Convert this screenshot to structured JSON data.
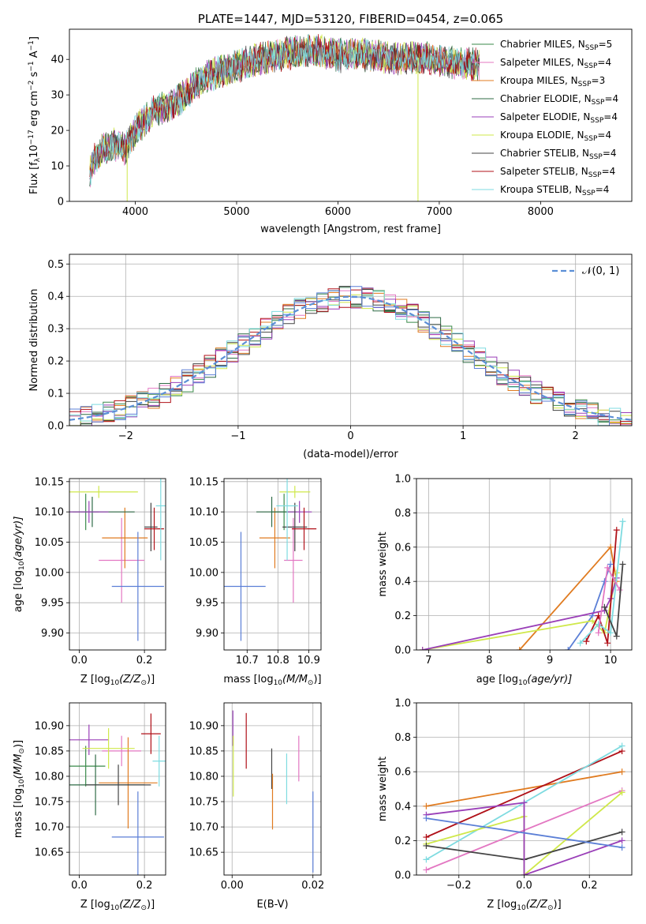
{
  "colors": {
    "chabrier_miles": "#3a8a4a",
    "salpeter_miles": "#e377c2",
    "kroupa_miles": "#e07b20",
    "chabrier_elodie": "#2f6b46",
    "salpeter_elodie": "#9a3fb8",
    "kroupa_elodie": "#cfe84a",
    "chabrier_stelib": "#444444",
    "salpeter_stelib": "#b01018",
    "kroupa_stelib": "#7edbe0",
    "normal_curve": "#5b8fd6",
    "extra_blue": "#5b7fd6",
    "grid": "#b0b0b0"
  },
  "chart_data": [
    {
      "id": "spectrum",
      "type": "line",
      "title": "PLATE=1447, MJD=53120, FIBERID=0454, z=0.065",
      "xlabel": "wavelength [Angstrom, rest frame]",
      "ylabel": "Flux [f",
      "ylabel_parts": [
        "Flux [f",
        "λ",
        "10",
        "−17",
        " erg cm",
        "−2",
        " s",
        "−1",
        " A",
        "−1",
        "]"
      ],
      "xlim": [
        3350,
        8900
      ],
      "ylim": [
        0,
        48.5
      ],
      "xticks": [
        4000,
        5000,
        6000,
        7000,
        8000
      ],
      "yticks": [
        0,
        10,
        20,
        30,
        40
      ],
      "grid": false,
      "legend_position": "upper-right",
      "continuum": {
        "x": [
          3550,
          3600,
          3700,
          3800,
          3900,
          4000,
          4100,
          4200,
          4300,
          4400,
          4500,
          4600,
          4700,
          4800,
          4900,
          5000,
          5200,
          5400,
          5600,
          5800,
          6000,
          6200,
          6400,
          6600,
          6800,
          7000,
          7200,
          7400
        ],
        "y": [
          8,
          12,
          15,
          16,
          15,
          20,
          23,
          26,
          26,
          28,
          30,
          33,
          35,
          36,
          37,
          38,
          40,
          41,
          42,
          42.5,
          41,
          41.5,
          41,
          40,
          40.5,
          39.5,
          39,
          38.5
        ]
      },
      "series": [
        {
          "name": "Chabrier MILES",
          "nssp": "5",
          "color_key": "chabrier_miles"
        },
        {
          "name": "Salpeter MILES",
          "nssp": "4",
          "color_key": "salpeter_miles"
        },
        {
          "name": "Kroupa MILES",
          "nssp": "3",
          "color_key": "kroupa_miles"
        },
        {
          "name": "Chabrier ELODIE",
          "nssp": "4",
          "color_key": "chabrier_elodie"
        },
        {
          "name": "Salpeter ELODIE",
          "nssp": "4",
          "color_key": "salpeter_elodie"
        },
        {
          "name": "Kroupa ELODIE",
          "nssp": "4",
          "color_key": "kroupa_elodie"
        },
        {
          "name": "Chabrier STELIB",
          "nssp": "4",
          "color_key": "chabrier_stelib"
        },
        {
          "name": "Salpeter STELIB",
          "nssp": "4",
          "color_key": "salpeter_stelib"
        },
        {
          "name": "Kroupa STELIB",
          "nssp": "4",
          "color_key": "kroupa_stelib"
        }
      ],
      "nssp_label": "N",
      "nssp_sub": "SSP"
    },
    {
      "id": "residuals",
      "type": "area",
      "xlabel": "(data-model)/error",
      "ylabel": "Normed distribution",
      "xlim": [
        -2.5,
        2.5
      ],
      "ylim": [
        0,
        0.53
      ],
      "xticks": [
        -2,
        -1,
        0,
        1,
        2
      ],
      "yticks": [
        0.0,
        0.1,
        0.2,
        0.3,
        0.4,
        0.5
      ],
      "bin_width": 0.1,
      "grid": true,
      "legend_label": "𝒩(0, 1)",
      "legend_position": "upper-right"
    },
    {
      "id": "age_vs_Z",
      "type": "scatter",
      "xlabel": "Z [log",
      "xlabel_parts": [
        "Z [log",
        "10",
        "(Z/Z",
        "⊙",
        ")]"
      ],
      "ylabel_parts": [
        "age  [log",
        "10",
        "(age/yr)]"
      ],
      "xlim": [
        -0.03,
        0.265
      ],
      "ylim": [
        9.872,
        10.155
      ],
      "xticks": [
        0.0,
        0.2
      ],
      "yticks": [
        9.9,
        9.95,
        10.0,
        10.05,
        10.1,
        10.15
      ],
      "grid": true,
      "points": [
        {
          "color_key": "chabrier_miles",
          "x": 0.02,
          "xerr": 0.04,
          "y": 10.1,
          "yerr": 0.03
        },
        {
          "color_key": "salpeter_miles",
          "x": 0.13,
          "xerr": 0.07,
          "y": 10.02,
          "yerr": 0.07
        },
        {
          "color_key": "kroupa_miles",
          "x": 0.14,
          "xerr": 0.07,
          "y": 10.057,
          "yerr": 0.05
        },
        {
          "color_key": "chabrier_elodie",
          "x": 0.04,
          "xerr": 0.13,
          "y": 10.1,
          "yerr": 0.025
        },
        {
          "color_key": "salpeter_elodie",
          "x": 0.03,
          "xerr": 0.06,
          "y": 10.1,
          "yerr": 0.018
        },
        {
          "color_key": "kroupa_elodie",
          "x": 0.06,
          "xerr": 0.12,
          "y": 10.133,
          "yerr": 0.01
        },
        {
          "color_key": "chabrier_stelib",
          "x": 0.22,
          "xerr": 0.02,
          "y": 10.075,
          "yerr": 0.04
        },
        {
          "color_key": "salpeter_stelib",
          "x": 0.23,
          "xerr": 0.03,
          "y": 10.072,
          "yerr": 0.035
        },
        {
          "color_key": "kroupa_stelib",
          "x": 0.25,
          "xerr": 0.015,
          "y": 10.11,
          "yerr": 0.09
        },
        {
          "color_key": "extra_blue",
          "x": 0.18,
          "xerr": 0.08,
          "y": 9.977,
          "yerr": 0.09
        }
      ]
    },
    {
      "id": "age_vs_mass",
      "type": "scatter",
      "xlabel_parts": [
        "mass [log",
        "10",
        "(M/M",
        "⊙",
        ")]"
      ],
      "xlim": [
        10.625,
        10.94
      ],
      "ylim": [
        9.872,
        10.155
      ],
      "xticks": [
        10.7,
        10.8,
        10.9
      ],
      "yticks": [
        9.9,
        9.95,
        10.0,
        10.05,
        10.1,
        10.15
      ],
      "grid": true,
      "points": [
        {
          "color_key": "chabrier_miles",
          "x": 10.82,
          "xerr": 0.04,
          "y": 10.1,
          "yerr": 0.03
        },
        {
          "color_key": "salpeter_miles",
          "x": 10.85,
          "xerr": 0.03,
          "y": 10.02,
          "yerr": 0.07
        },
        {
          "color_key": "kroupa_miles",
          "x": 10.79,
          "xerr": 0.05,
          "y": 10.057,
          "yerr": 0.05
        },
        {
          "color_key": "chabrier_elodie",
          "x": 10.78,
          "xerr": 0.05,
          "y": 10.1,
          "yerr": 0.025
        },
        {
          "color_key": "salpeter_elodie",
          "x": 10.87,
          "xerr": 0.04,
          "y": 10.1,
          "yerr": 0.018
        },
        {
          "color_key": "kroupa_elodie",
          "x": 10.855,
          "xerr": 0.05,
          "y": 10.133,
          "yerr": 0.01
        },
        {
          "color_key": "chabrier_stelib",
          "x": 10.855,
          "xerr": 0.04,
          "y": 10.075,
          "yerr": 0.04
        },
        {
          "color_key": "salpeter_stelib",
          "x": 10.885,
          "xerr": 0.04,
          "y": 10.072,
          "yerr": 0.035
        },
        {
          "color_key": "kroupa_stelib",
          "x": 10.83,
          "xerr": 0.035,
          "y": 10.11,
          "yerr": 0.09
        },
        {
          "color_key": "extra_blue",
          "x": 10.68,
          "xerr": 0.08,
          "y": 9.977,
          "yerr": 0.09
        }
      ]
    },
    {
      "id": "weight_vs_age",
      "type": "line",
      "xlabel_parts": [
        "age  [log",
        "10",
        "(age/yr)]"
      ],
      "ylabel": "mass weight",
      "xlim": [
        6.8,
        10.35
      ],
      "ylim": [
        0,
        1
      ],
      "xticks": [
        7,
        8,
        9,
        10
      ],
      "yticks": [
        0.0,
        0.2,
        0.4,
        0.6,
        0.8,
        1.0
      ],
      "grid": true,
      "series": [
        {
          "color_key": "kroupa_miles",
          "x": [
            8.5,
            10.0,
            10.1
          ],
          "y": [
            0.0,
            0.6,
            0.4
          ]
        },
        {
          "color_key": "extra_blue",
          "x": [
            9.3,
            9.7,
            9.9,
            10.0
          ],
          "y": [
            0.0,
            0.2,
            0.4,
            0.5
          ]
        },
        {
          "color_key": "kroupa_elodie",
          "x": [
            6.9,
            9.7,
            9.9,
            10.1
          ],
          "y": [
            0.0,
            0.17,
            0.1,
            0.45
          ]
        },
        {
          "color_key": "salpeter_elodie",
          "x": [
            6.9,
            9.9,
            10.0,
            10.1
          ],
          "y": [
            0.0,
            0.23,
            0.3,
            0.42
          ]
        },
        {
          "color_key": "salpeter_stelib",
          "x": [
            9.6,
            9.8,
            9.95,
            10.1
          ],
          "y": [
            0.05,
            0.2,
            0.04,
            0.7
          ]
        },
        {
          "color_key": "kroupa_stelib",
          "x": [
            9.5,
            9.8,
            10.0,
            10.2
          ],
          "y": [
            0.04,
            0.15,
            0.1,
            0.75
          ]
        },
        {
          "color_key": "salpeter_miles",
          "x": [
            9.8,
            9.95,
            10.15
          ],
          "y": [
            0.1,
            0.48,
            0.35
          ]
        },
        {
          "color_key": "chabrier_stelib",
          "x": [
            9.9,
            10.1,
            10.2
          ],
          "y": [
            0.25,
            0.08,
            0.5
          ]
        }
      ]
    },
    {
      "id": "mass_vs_Z",
      "type": "scatter",
      "xlabel_parts": [
        "Z [log",
        "10",
        "(Z/Z",
        "⊙",
        ")]"
      ],
      "ylabel_parts": [
        "mass [log",
        "10",
        "(M/M",
        "⊙",
        ")]"
      ],
      "xlim": [
        -0.03,
        0.265
      ],
      "ylim": [
        10.605,
        10.945
      ],
      "xticks": [
        0.0,
        0.2
      ],
      "yticks": [
        10.65,
        10.7,
        10.75,
        10.8,
        10.85,
        10.9
      ],
      "grid": true,
      "points": [
        {
          "color_key": "chabrier_miles",
          "x": 0.02,
          "xerr": 0.06,
          "y": 10.82,
          "yerr": 0.04
        },
        {
          "color_key": "salpeter_miles",
          "x": 0.13,
          "xerr": 0.06,
          "y": 10.85,
          "yerr": 0.03
        },
        {
          "color_key": "kroupa_miles",
          "x": 0.15,
          "xerr": 0.09,
          "y": 10.787,
          "yerr": 0.09
        },
        {
          "color_key": "chabrier_elodie",
          "x": 0.05,
          "xerr": 0.15,
          "y": 10.783,
          "yerr": 0.06
        },
        {
          "color_key": "salpeter_elodie",
          "x": 0.03,
          "xerr": 0.06,
          "y": 10.872,
          "yerr": 0.03
        },
        {
          "color_key": "kroupa_elodie",
          "x": 0.09,
          "xerr": 0.08,
          "y": 10.855,
          "yerr": 0.04
        },
        {
          "color_key": "chabrier_stelib",
          "x": 0.12,
          "xerr": 0.1,
          "y": 10.783,
          "yerr": 0.04
        },
        {
          "color_key": "salpeter_stelib",
          "x": 0.22,
          "xerr": 0.03,
          "y": 10.884,
          "yerr": 0.04
        },
        {
          "color_key": "kroupa_stelib",
          "x": 0.245,
          "xerr": 0.02,
          "y": 10.83,
          "yerr": 0.05
        },
        {
          "color_key": "extra_blue",
          "x": 0.18,
          "xerr": 0.08,
          "y": 10.68,
          "yerr": 0.09
        }
      ]
    },
    {
      "id": "mass_vs_EBV",
      "type": "scatter",
      "xlabel": "E(B-V)",
      "xlim": [
        -0.002,
        0.022
      ],
      "ylim": [
        10.605,
        10.945
      ],
      "xticks": [
        0.0,
        0.02
      ],
      "yticks": [
        10.65,
        10.7,
        10.75,
        10.8,
        10.85,
        10.9
      ],
      "grid": true,
      "points": [
        {
          "color_key": "salpeter_elodie",
          "x": 0.0002,
          "y": 10.895,
          "yerr": 0.035
        },
        {
          "color_key": "kroupa_elodie",
          "x": 0.0003,
          "y": 10.82,
          "yerr": 0.06
        },
        {
          "color_key": "salpeter_stelib",
          "x": 0.0035,
          "y": 10.87,
          "yerr": 0.055
        },
        {
          "color_key": "chabrier_stelib",
          "x": 0.0098,
          "y": 10.815,
          "yerr": 0.04
        },
        {
          "color_key": "kroupa_miles",
          "x": 0.01,
          "y": 10.75,
          "yerr": 0.055
        },
        {
          "color_key": "kroupa_stelib",
          "x": 0.0135,
          "y": 10.795,
          "yerr": 0.05
        },
        {
          "color_key": "salpeter_miles",
          "x": 0.0165,
          "y": 10.835,
          "yerr": 0.045
        },
        {
          "color_key": "extra_blue",
          "x": 0.02,
          "y": 10.69,
          "yerr": 0.08
        }
      ]
    },
    {
      "id": "weight_vs_Z",
      "type": "line",
      "xlabel_parts": [
        "Z [log",
        "10",
        "(Z/Z",
        "⊙",
        ")]"
      ],
      "ylabel": "mass weight",
      "xlim": [
        -0.33,
        0.33
      ],
      "ylim": [
        0,
        1
      ],
      "xticks": [
        -0.2,
        0.0,
        0.2
      ],
      "yticks": [
        0.0,
        0.2,
        0.4,
        0.6,
        0.8,
        1.0
      ],
      "grid": true,
      "series": [
        {
          "color_key": "kroupa_miles",
          "x": [
            -0.3,
            0.3
          ],
          "y": [
            0.4,
            0.6
          ]
        },
        {
          "color_key": "salpeter_stelib",
          "x": [
            -0.3,
            0.3
          ],
          "y": [
            0.22,
            0.72
          ]
        },
        {
          "color_key": "kroupa_stelib",
          "x": [
            -0.3,
            0.0,
            0.3
          ],
          "y": [
            0.09,
            0.42,
            0.75
          ]
        },
        {
          "color_key": "salpeter_miles",
          "x": [
            -0.3,
            0.3
          ],
          "y": [
            0.03,
            0.49
          ]
        },
        {
          "color_key": "kroupa_elodie",
          "x": [
            -0.3,
            0.0,
            0.0,
            0.3
          ],
          "y": [
            0.18,
            0.34,
            0.0,
            0.48
          ]
        },
        {
          "color_key": "chabrier_stelib",
          "x": [
            -0.3,
            0.0,
            0.3
          ],
          "y": [
            0.17,
            0.09,
            0.25
          ]
        },
        {
          "color_key": "salpeter_elodie",
          "x": [
            -0.3,
            0.0,
            0.0,
            0.3
          ],
          "y": [
            0.35,
            0.42,
            0.0,
            0.2
          ]
        },
        {
          "color_key": "extra_blue",
          "x": [
            -0.3,
            0.3
          ],
          "y": [
            0.33,
            0.16
          ]
        }
      ]
    }
  ]
}
